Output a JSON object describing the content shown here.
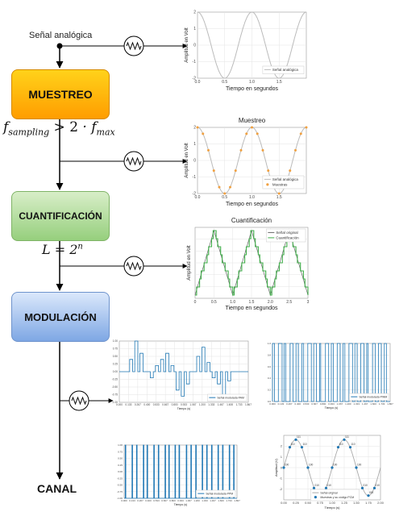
{
  "flow": {
    "input_label": "Señal analógica",
    "stages": [
      {
        "label": "MUESTREO",
        "color": "#ffb300"
      },
      {
        "label": "CUANTIFICACIÓN",
        "color": "#a9d78f"
      },
      {
        "label": "MODULACIÓN",
        "color": "#8fb2e8"
      }
    ],
    "output_label": "CANAL",
    "formula_sampling": "f_sampling > 2 · f_max",
    "formula_levels": "L = 2^n",
    "probe_icon": "oscilloscope-icon"
  },
  "chart_data": [
    {
      "type": "line",
      "title": "",
      "xlabel": "Tiempo en segundos",
      "ylabel": "Amplitud en Volt",
      "xlim": [
        0,
        2
      ],
      "ylim": [
        -2,
        2
      ],
      "xticks": [
        "0.0",
        "0.5",
        "1.0",
        "1.5"
      ],
      "yticks": [
        "2",
        "1",
        "0",
        "-1",
        "-2"
      ],
      "legend": [
        "Señal analógica"
      ],
      "legend_loc": "lower-right",
      "grid": true,
      "series": [
        {
          "name": "Señal analógica",
          "function": "2*cos(2*pi*t)",
          "color": "#bbbbbb"
        }
      ]
    },
    {
      "type": "line",
      "title": "Muestreo",
      "xlabel": "Tiempo en segundos",
      "ylabel": "Amplitud en Volt",
      "xlim": [
        0,
        2
      ],
      "ylim": [
        -2,
        2
      ],
      "xticks": [
        "0.0",
        "0.5",
        "1.0",
        "1.5"
      ],
      "yticks": [
        "2",
        "1",
        "0",
        "-1",
        "-2"
      ],
      "legend": [
        "Señal analógica",
        "Muestras"
      ],
      "legend_loc": "lower-right",
      "grid": true,
      "sample_interval": 0.1,
      "series": [
        {
          "name": "Señal analógica",
          "function": "2*cos(2*pi*t)",
          "color": "#bbbbbb"
        },
        {
          "name": "Muestras",
          "function": "2*cos(2*pi*t)",
          "color": "#f0a040"
        }
      ]
    },
    {
      "type": "line",
      "title": "Cuantificación",
      "xlabel": "Tiempo en segundos",
      "ylabel": "Amplitud en Volt",
      "xlim": [
        0,
        3
      ],
      "ylim": [
        -2.2,
        2.2
      ],
      "xticks": [
        "0",
        "0.5",
        "1.0",
        "1.5",
        "2.0",
        "2.5",
        "3"
      ],
      "yticks": [],
      "legend": [
        "Señal original",
        "Cuantificación"
      ],
      "legend_loc": "top-right",
      "grid": true,
      "series": [
        {
          "name": "Señal original",
          "function": "triangle",
          "color": "#666666"
        },
        {
          "name": "Cuantificación",
          "function": "quantized triangle",
          "color": "#3fae49"
        }
      ]
    },
    {
      "type": "line",
      "title": "",
      "xlabel": "Tiempo (s)",
      "ylabel": "",
      "legend": [
        "Señal modulada PAM"
      ],
      "legend_loc": "lower-right",
      "grid": true,
      "xticks": [
        "0.000",
        "0.133",
        "0.267",
        "0.400",
        "0.533",
        "0.667",
        "0.800",
        "0.933",
        "1.067",
        "1.200",
        "1.333",
        "1.467",
        "1.600",
        "1.733",
        "1.867"
      ],
      "yticks": [
        "1.00",
        "0.75",
        "0.50",
        "0.25",
        "0.00",
        "-0.25",
        "-0.50",
        "-0.75",
        "-1.00"
      ],
      "ylim": [
        -1,
        1
      ],
      "values": [
        0,
        0,
        0.4,
        1,
        0.6,
        0,
        -0.2,
        0.2,
        0.4,
        0.6,
        0.2,
        -0.6,
        -0.8,
        -0.4,
        0,
        0.5,
        0.8,
        0.3,
        -0.2,
        -0.4,
        -0.8,
        -0.3,
        0,
        0,
        0
      ],
      "color": "#1f77b4"
    },
    {
      "type": "line",
      "title": "",
      "xlabel": "Tiempo (s)",
      "ylabel": "",
      "legend": [
        "Señal modulada PWM"
      ],
      "legend_loc": "lower-right",
      "grid": true,
      "xticks": [
        "0.000",
        "0.133",
        "0.267",
        "0.400",
        "0.533",
        "0.667",
        "0.800",
        "0.933",
        "1.067",
        "1.200",
        "1.333",
        "1.467",
        "1.600",
        "1.733",
        "1.867"
      ],
      "yticks": [
        "1.0",
        "0.8",
        "0.6",
        "0.4",
        "0.2",
        "0.0"
      ],
      "ylim": [
        0,
        1
      ],
      "duty": [
        0.35,
        0.65,
        0.25,
        0.5,
        0.4,
        0.3,
        0.6,
        0.45,
        0.2,
        0.55,
        0.35,
        0.5,
        0.3,
        0.6,
        0.4,
        0.55,
        0.25,
        0.45,
        0.5,
        0.35
      ],
      "color": "#1f77b4"
    },
    {
      "type": "line",
      "title": "",
      "xlabel": "Tiempo (s)",
      "ylabel": "",
      "legend": [
        "Señal modulada PPM"
      ],
      "legend_loc": "lower-right",
      "grid": true,
      "xticks": [
        "0.000",
        "0.133",
        "0.267",
        "0.400",
        "0.533",
        "0.667",
        "0.800",
        "0.933",
        "1.067",
        "1.200",
        "1.333",
        "1.467",
        "1.600",
        "1.733",
        "1.867"
      ],
      "yticks": [
        "1.00",
        "0.75",
        "0.50",
        "0.25",
        "0.00",
        "-0.25",
        "-0.50",
        "-0.75",
        "-1.00"
      ],
      "ylim": [
        -1,
        1
      ],
      "pulse_offsets": [
        0.2,
        0.45,
        0.3,
        0.55,
        0.25,
        0.5,
        0.35,
        0.6,
        0.3,
        0.45,
        0.2,
        0.55,
        0.4,
        0.3,
        0.5,
        0.35,
        0.25,
        0.45,
        0.3,
        0.55,
        0.35
      ],
      "color": "#1f77b4"
    },
    {
      "type": "scatter",
      "title": "",
      "xlabel": "Tiempo (s)",
      "ylabel": "Amplitud (V)",
      "xlim": [
        0,
        2
      ],
      "ylim": [
        -3,
        3
      ],
      "xticks": [
        "0.00",
        "0.25",
        "0.50",
        "0.75",
        "1.00",
        "1.25",
        "1.50",
        "1.75",
        "2.00"
      ],
      "yticks": [
        "2",
        "1",
        "0",
        "-1",
        "-2"
      ],
      "legend": [
        "Señal original",
        "Muestras y su código PCM"
      ],
      "legend_loc": "bottom-center",
      "grid": true,
      "samples_x": [
        0,
        0.125,
        0.25,
        0.375,
        0.5,
        0.625,
        0.75,
        0.875,
        1.0,
        1.125,
        1.25,
        1.375,
        1.5,
        1.625,
        1.75,
        1.875
      ],
      "samples_y": [
        0,
        1.9,
        2.6,
        1.9,
        0,
        -1.9,
        -2.6,
        -1.9,
        0,
        1.9,
        2.6,
        1.9,
        0,
        -1.9,
        -2.6,
        -1.9
      ],
      "codes": [
        "100",
        "110",
        "111",
        "110",
        "100",
        "010",
        "000",
        "010",
        "100",
        "110",
        "111",
        "110",
        "100",
        "010",
        "000",
        "010"
      ],
      "series": [
        {
          "name": "Señal original",
          "function": "2.6*sin(2*pi*t)",
          "color": "#aaaaaa"
        },
        {
          "name": "Muestras y su código PCM",
          "color": "#1f77b4"
        }
      ]
    }
  ]
}
